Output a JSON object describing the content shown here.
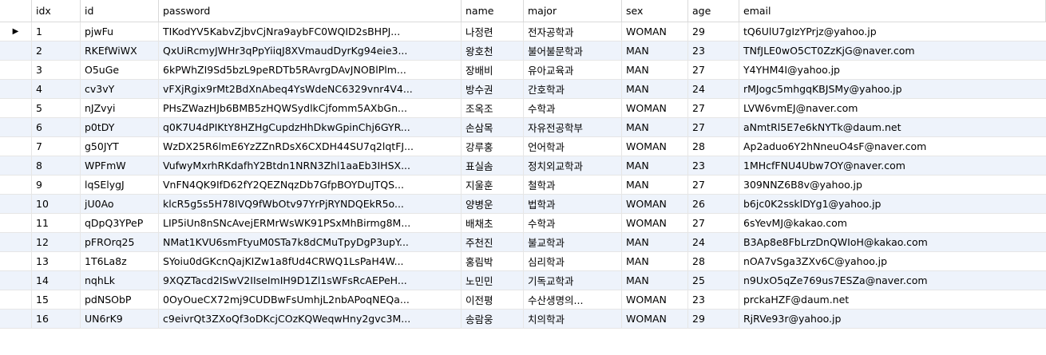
{
  "columns": [
    "idx",
    "id",
    "password",
    "name",
    "major",
    "sex",
    "age",
    "email"
  ],
  "selected_row_marker": "▶",
  "rows": [
    {
      "idx": "1",
      "id": "pjwFu",
      "password": "TIKodYV5KabvZjbvCjNra9aybFC0WQID2sBHPJ...",
      "name": "나정련",
      "major": "전자공학과",
      "sex": "WOMAN",
      "age": "29",
      "email": "tQ6UlU7gIzYPrjz@yahoo.jp"
    },
    {
      "idx": "2",
      "id": "RKEfWiWX",
      "password": "QxUiRcmyJWHr3qPpYiiqJ8XVmaudDyrKg94eie3...",
      "name": "왕호천",
      "major": "불어불문학과",
      "sex": "MAN",
      "age": "23",
      "email": "TNfJLE0wO5CT0ZzKjG@naver.com"
    },
    {
      "idx": "3",
      "id": "O5uGe",
      "password": "6kPWhZI9Sd5bzL9peRDTb5RAvrgDAvJNOBlPlm...",
      "name": "장배비",
      "major": "유아교육과",
      "sex": "MAN",
      "age": "27",
      "email": "Y4YHM4I@yahoo.jp"
    },
    {
      "idx": "4",
      "id": "cv3vY",
      "password": "vFXjRgix9rMt2BdXnAbeq4YsWdeNC6329vnr4V4...",
      "name": "방수권",
      "major": "간호학과",
      "sex": "MAN",
      "age": "24",
      "email": "rMJogc5mhgqKBJSMy@yahoo.jp"
    },
    {
      "idx": "5",
      "id": "nJZvyi",
      "password": "PHsZWazHJb6BMB5zHQWSydlkCjfomm5AXbGn...",
      "name": "조옥조",
      "major": "수학과",
      "sex": "WOMAN",
      "age": "27",
      "email": "LVW6vmEJ@naver.com"
    },
    {
      "idx": "6",
      "id": "p0tDY",
      "password": "q0K7U4dPIKtY8HZHgCupdzHhDkwGpinChj6GYR...",
      "name": "손삼목",
      "major": "자유전공학부",
      "sex": "MAN",
      "age": "27",
      "email": "aNmtRl5E7e6kNYTk@daum.net"
    },
    {
      "idx": "7",
      "id": "g50JYT",
      "password": "WzDX25R6lmE6YzZZnRDsX6CXDH44SU7q2lqtFJ...",
      "name": "강루홍",
      "major": "언어학과",
      "sex": "WOMAN",
      "age": "28",
      "email": "Ap2aduo6Y2hNneuO4sF@naver.com"
    },
    {
      "idx": "8",
      "id": "WPFmW",
      "password": "VufwyMxrhRKdafhY2Btdn1NRN3Zhl1aaEb3IHSX...",
      "name": "표실솜",
      "major": "정치외교학과",
      "sex": "MAN",
      "age": "23",
      "email": "1MHcfFNU4Ubw7OY@naver.com"
    },
    {
      "idx": "9",
      "id": "lqSElygJ",
      "password": "VnFN4QK9IfD62fY2QEZNqzDb7GfpBOYDuJTQS...",
      "name": "지울훈",
      "major": "철학과",
      "sex": "MAN",
      "age": "27",
      "email": "309NNZ6B8v@yahoo.jp"
    },
    {
      "idx": "10",
      "id": "jU0Ao",
      "password": "klcR5g5s5H78IVQ9fWbOtv97YrPjRYNDQEkR5o...",
      "name": "양병운",
      "major": "법학과",
      "sex": "WOMAN",
      "age": "26",
      "email": "b6jc0K2ssklDYg1@yahoo.jp"
    },
    {
      "idx": "11",
      "id": "qDpQ3YPeP",
      "password": "LIP5iUn8nSNcAvejERMrWsWK91PSxMhBirmg8M...",
      "name": "배채초",
      "major": "수학과",
      "sex": "WOMAN",
      "age": "27",
      "email": "6sYevMJ@kakao.com"
    },
    {
      "idx": "12",
      "id": "pFROrq25",
      "password": "NMat1KVU6smFtyuM0STa7k8dCMuTpyDgP3upY...",
      "name": "주천진",
      "major": "불교학과",
      "sex": "MAN",
      "age": "24",
      "email": "B3Ap8e8FbLrzDnQWIoH@kakao.com"
    },
    {
      "idx": "13",
      "id": "1T6La8z",
      "password": "SYoiu0dGKcnQajKIZw1a8fUd4CRWQ1LsPaH4W...",
      "name": "홍림박",
      "major": "심리학과",
      "sex": "MAN",
      "age": "28",
      "email": "nOA7vSga3ZXv6C@yahoo.jp"
    },
    {
      "idx": "14",
      "id": "nqhLk",
      "password": "9XQZTacd2ISwV2IIseImIH9D1Zl1sWFsRcAEPeH...",
      "name": "노민민",
      "major": "기독교학과",
      "sex": "MAN",
      "age": "25",
      "email": "n9UxO5qZe769us7ESZa@naver.com"
    },
    {
      "idx": "15",
      "id": "pdNSObP",
      "password": "0OyOueCX72mj9CUDBwFsUmhjL2nbAPoqNEQa...",
      "name": "이전평",
      "major": "수산생명의...",
      "sex": "WOMAN",
      "age": "23",
      "email": "prckaHZF@daum.net"
    },
    {
      "idx": "16",
      "id": "UN6rK9",
      "password": "c9eivrQt3ZXoQf3oDKcjCOzKQWeqwHny2gvc3M...",
      "name": "송람웅",
      "major": "치의학과",
      "sex": "WOMAN",
      "age": "29",
      "email": "RjRVe93r@yahoo.jp"
    }
  ]
}
